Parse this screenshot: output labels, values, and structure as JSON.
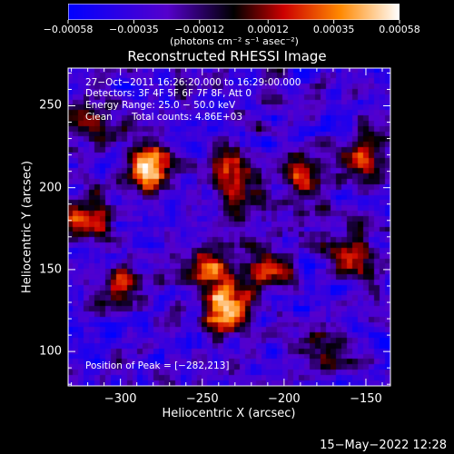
{
  "chart_data": {
    "type": "heatmap",
    "title": "Reconstructed RHESSI Image",
    "xlabel": "Heliocentric X (arcsec)",
    "ylabel": "Heliocentric Y (arcsec)",
    "xlim": [
      -332,
      -135
    ],
    "ylim": [
      79,
      273
    ],
    "x_ticks": [
      "−300",
      "−250",
      "−200",
      "−150"
    ],
    "x_tick_values": [
      -300,
      -250,
      -200,
      -150
    ],
    "y_ticks": [
      "100",
      "150",
      "200",
      "250"
    ],
    "y_tick_values": [
      100,
      150,
      200,
      250
    ],
    "colorbar": {
      "ticks": [
        "−0.00058",
        "−0.00035",
        "−0.00012",
        "0.00012",
        "0.00035",
        "0.00058"
      ],
      "tick_values": [
        -0.00058,
        -0.00035,
        -0.00012,
        0.00012,
        0.00035,
        0.00058
      ],
      "range": [
        -0.00058,
        0.00058
      ],
      "units": "(photons cm⁻² s⁻¹ asec⁻²)",
      "colors": [
        "#0000ff",
        "#5500cc",
        "#000000",
        "#cc0000",
        "#ff8800",
        "#ffffff"
      ]
    },
    "annotations": {
      "time_range": "27−Oct−2011 16:26:20.000 to 16:29:00.000",
      "detectors": "Detectors: 3F 4F 5F 6F 7F 8F, Att 0",
      "energy_range": "Energy Range: 25.0 − 50.0 keV",
      "clean": "Clean",
      "total_counts": "Total counts: 4.86E+03",
      "peak_position": "Position of Peak = [−282,213]"
    },
    "peak": [
      -282,
      213
    ],
    "hot_spots": [
      {
        "x": -282,
        "y": 213,
        "level": 1.0
      },
      {
        "x": -235,
        "y": 125,
        "level": 0.95
      },
      {
        "x": -230,
        "y": 205,
        "level": 0.8
      },
      {
        "x": -245,
        "y": 150,
        "level": 0.7
      },
      {
        "x": -320,
        "y": 180,
        "level": 0.7
      },
      {
        "x": -160,
        "y": 160,
        "level": 0.65
      },
      {
        "x": -150,
        "y": 220,
        "level": 0.6
      },
      {
        "x": -210,
        "y": 150,
        "level": 0.55
      },
      {
        "x": -320,
        "y": 240,
        "level": 0.5
      },
      {
        "x": -300,
        "y": 140,
        "level": 0.5
      },
      {
        "x": -185,
        "y": 205,
        "level": 0.45
      },
      {
        "x": -175,
        "y": 100,
        "level": 0.4
      }
    ]
  },
  "footer": {
    "timestamp": "15−May−2022 12:28"
  }
}
